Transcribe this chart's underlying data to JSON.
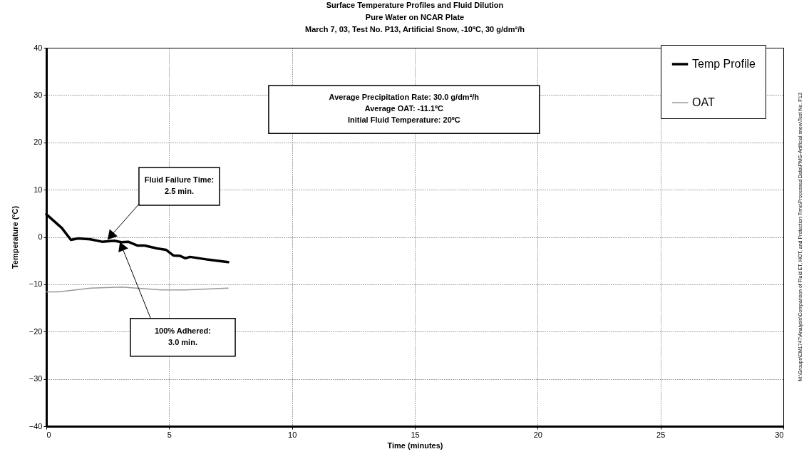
{
  "chart_data": {
    "type": "line",
    "title": "Surface Temperature Profiles and Fluid Dilution",
    "subtitle": "Pure Water on NCAR Plate\nMarch 7, 03, Test No. P13, Artificial Snow, -10ºC, 30 g/dm²/h",
    "xlabel": "Time (minutes)",
    "ylabel": "Temperature (ºC)",
    "xlim": [
      0,
      30
    ],
    "xticks": [
      0,
      5,
      10,
      15,
      20,
      25,
      30
    ],
    "ylim": [
      -40,
      40
    ],
    "yticks": [
      -40,
      -30,
      -20,
      -10,
      0,
      10,
      20,
      30,
      40
    ],
    "grid": true,
    "legend": "top right",
    "marker": "none",
    "line_style": "solid",
    "series": [
      {
        "name": "Temp Profile",
        "color": "#000000",
        "x": [
          0,
          0.63,
          1.0,
          1.3,
          1.8,
          2.27,
          2.76,
          3.05,
          3.33,
          3.7,
          4.0,
          4.5,
          4.87,
          5.17,
          5.45,
          5.66,
          5.85,
          6.6,
          7.4
        ],
        "values": [
          4.8,
          1.9,
          -0.6,
          -0.3,
          -0.5,
          -1.0,
          -0.8,
          -1.1,
          -1.0,
          -1.8,
          -1.8,
          -2.4,
          -2.7,
          -3.9,
          -4.0,
          -4.5,
          -4.2,
          -4.8,
          -5.3
        ]
      },
      {
        "name": "OAT",
        "color": "#999999",
        "x": [
          0,
          0.5,
          1.8,
          3.05,
          4.7,
          5.66,
          7.4
        ],
        "values": [
          -11.6,
          -11.6,
          -10.8,
          -10.6,
          -11.2,
          -11.2,
          -10.8
        ]
      }
    ],
    "annotations": [
      "Average Precipitation Rate: 30.0 g/dm²/h\nAverage OAT: -11.1ºC\nInitial Fluid Temperature: 20ºC",
      {
        "text": "Fluid Failure Time:\n2.5 min.",
        "x": 2.5,
        "y": -0.5
      },
      {
        "text": "100% Adhered:\n3.0 min.",
        "x": 3.0,
        "y": -1.1
      },
      "M:\\Groups\\CM1747\\Analysis\\Comparison of Fluid ET, HOT, and Protection Time\\Processed Data\\PMG-Artificial snow\\Test No. P13"
    ]
  }
}
